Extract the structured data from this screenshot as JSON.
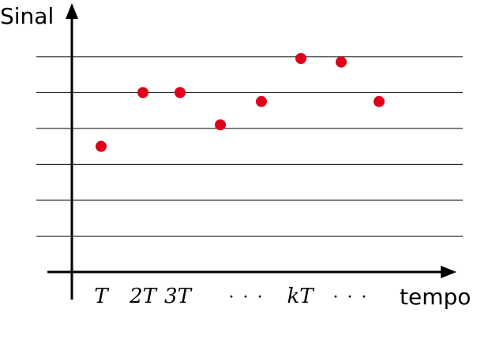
{
  "chart_data": {
    "type": "scatter",
    "ylabel": "Sinal",
    "xlabel": "tempo",
    "x_tick_labels": [
      "T",
      "2T",
      "3T",
      "· · ·",
      "kT",
      "· · ·"
    ],
    "x_tick_positions": [
      1,
      2,
      3,
      5,
      6.1,
      7.2
    ],
    "series": [
      {
        "points": [
          {
            "x": 1,
            "y": 3.5
          },
          {
            "x": 2,
            "y": 5.0
          },
          {
            "x": 3,
            "y": 5.0
          },
          {
            "x": 4,
            "y": 4.1
          },
          {
            "x": 5,
            "y": 4.75
          },
          {
            "x": 6,
            "y": 5.95
          },
          {
            "x": 7,
            "y": 5.85
          },
          {
            "x": 8,
            "y": 4.75
          }
        ]
      }
    ],
    "grid_y": [
      1,
      2,
      3,
      4,
      5,
      6
    ],
    "xlim": [
      0,
      9.5
    ],
    "ylim": [
      0,
      6.7
    ],
    "grid": true,
    "point_color": "#e1001a",
    "line_color": "#000000"
  }
}
